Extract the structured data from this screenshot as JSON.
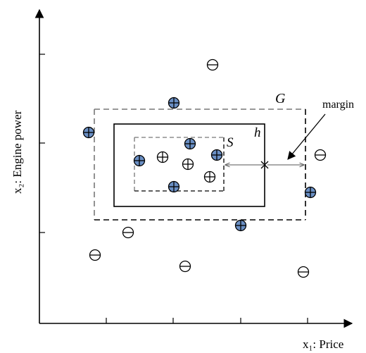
{
  "labels": {
    "y_axis": "x₂: Engine power",
    "x_axis": "x₁: Price",
    "rect_g": "G",
    "rect_h": "h",
    "rect_s": "S",
    "margin": "margin"
  },
  "colors": {
    "positive_fill": "#6a8fc4",
    "negative_fill": "#ffffff",
    "stroke": "#000000"
  },
  "legend_symbols": {
    "positive": "⊕",
    "negative": "⊖"
  }
}
